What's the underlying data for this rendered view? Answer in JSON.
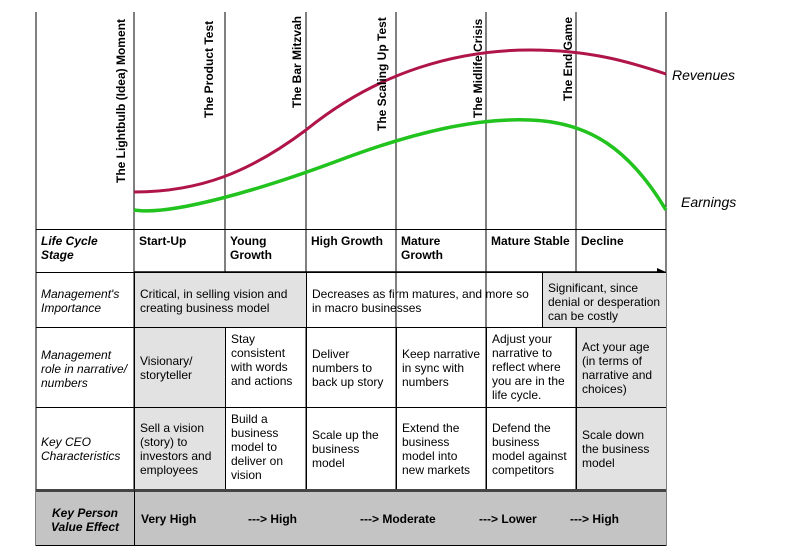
{
  "milestones": [
    "The Lightbulb (Idea) Moment",
    "The Product Test",
    "The Bar Mitzvah",
    "The Scaling Up Test",
    "The Midlife Crisis",
    "The End Game"
  ],
  "curves": {
    "revenues": {
      "label": "Revenues",
      "color": "#b0154a"
    },
    "earnings": {
      "label": "Earnings",
      "color": "#22c31e"
    }
  },
  "table": {
    "row_labels": {
      "stage": "Life Cycle Stage",
      "importance": "Management's Importance",
      "role": "Management role in narrative/ numbers",
      "ceo": "Key CEO Characteristics",
      "value": "Key Person Value Effect"
    },
    "stages": [
      "Start-Up",
      "Young Growth",
      "High Growth",
      "Mature Growth",
      "Mature Stable",
      "Decline"
    ],
    "importance": [
      "Critical, in selling vision and creating business model",
      "Decreases as firm matures, and more so in macro businesses",
      "Significant, since denial or desperation can be costly"
    ],
    "roles": [
      "Visionary/ storyteller",
      "Stay consistent with words and actions",
      "Deliver numbers to back up story",
      "Keep narrative in sync with numbers",
      "Adjust your narrative to reflect where you are in the life cycle.",
      "Act your age (in terms of narrative and choices)"
    ],
    "ceo": [
      "Sell a vision (story) to investors and employees",
      "Build a business model to deliver on vision",
      "Scale up the business model",
      "Extend the business model into new markets",
      "Defend the business model against competitors",
      "Scale down the business model"
    ],
    "value_effects": [
      "Very High",
      "---> High",
      "---> Moderate",
      "---> Lower",
      "---> High"
    ]
  }
}
